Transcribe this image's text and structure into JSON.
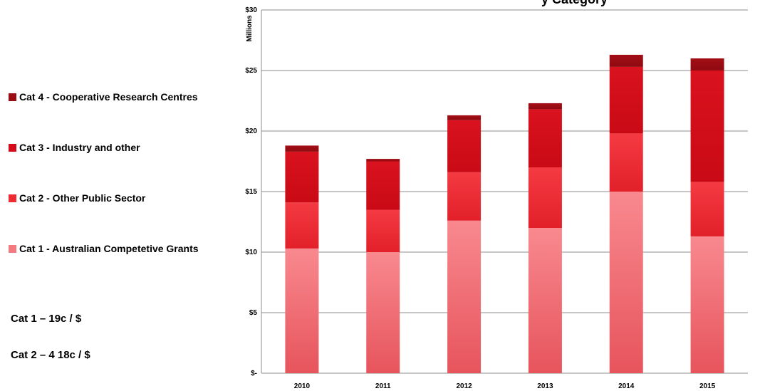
{
  "chart_data": {
    "type": "bar",
    "stacked": true,
    "title_partial": "y Category",
    "ylabel": "Millions",
    "categories": [
      "2010",
      "2011",
      "2012",
      "2013",
      "2014",
      "2015"
    ],
    "ylim": [
      0,
      30
    ],
    "yticks": [
      {
        "value": 0,
        "label": "$-"
      },
      {
        "value": 5,
        "label": "$5"
      },
      {
        "value": 10,
        "label": "$10"
      },
      {
        "value": 15,
        "label": "$15"
      },
      {
        "value": 20,
        "label": "$20"
      },
      {
        "value": 25,
        "label": "$25"
      },
      {
        "value": 30,
        "label": "$30"
      }
    ],
    "grid": true,
    "legend_position": "left",
    "series": [
      {
        "name": "Cat 1 - Australian Competetive Grants",
        "color": "#f47a80",
        "values": [
          10.3,
          10.0,
          12.6,
          12.0,
          15.0,
          11.3
        ]
      },
      {
        "name": "Cat 2 - Other Public Sector",
        "color": "#ee2a33",
        "values": [
          3.8,
          3.5,
          4.0,
          5.0,
          4.8,
          4.5
        ]
      },
      {
        "name": "Cat 3 - Industry and other",
        "color": "#d20c18",
        "values": [
          4.2,
          4.0,
          4.3,
          4.8,
          5.5,
          9.2
        ]
      },
      {
        "name": "Cat 4 - Cooperative Research Centres",
        "color": "#9a0c14",
        "values": [
          0.5,
          0.2,
          0.4,
          0.5,
          1.0,
          1.0
        ]
      }
    ]
  },
  "notes": [
    "Cat 1 – 19c / $",
    "Cat 2 – 4 18c / $"
  ]
}
